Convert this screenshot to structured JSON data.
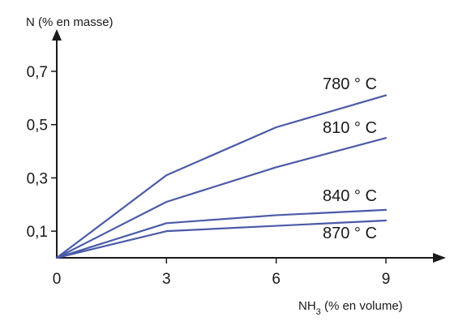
{
  "chart_data": {
    "type": "line",
    "ylabel": "N (% en masse)",
    "xlabel_main": "NH",
    "xlabel_sub": "3",
    "xlabel_rest": " (% en volume)",
    "x": [
      0,
      3,
      6,
      9
    ],
    "xlim": [
      0,
      9
    ],
    "ylim": [
      0,
      0.7
    ],
    "x_ticks": [
      {
        "value": 0,
        "label": "0"
      },
      {
        "value": 3,
        "label": "3"
      },
      {
        "value": 6,
        "label": "6"
      },
      {
        "value": 9,
        "label": "9"
      }
    ],
    "y_ticks": [
      {
        "value": 0.1,
        "label": "0,1"
      },
      {
        "value": 0.3,
        "label": "0,3"
      },
      {
        "value": 0.5,
        "label": "0,5"
      },
      {
        "value": 0.7,
        "label": "0,7"
      }
    ],
    "line_color": "#4a5aa8",
    "axis_color": "#1a1a1a",
    "grid": false,
    "series": [
      {
        "name": "780 ° C",
        "values": [
          0,
          0.31,
          0.49,
          0.61
        ]
      },
      {
        "name": "810 ° C",
        "values": [
          0,
          0.21,
          0.34,
          0.45
        ]
      },
      {
        "name": "840 ° C",
        "values": [
          0,
          0.13,
          0.16,
          0.18
        ]
      },
      {
        "name": "870 ° C",
        "values": [
          0,
          0.1,
          0.12,
          0.14
        ]
      }
    ]
  }
}
